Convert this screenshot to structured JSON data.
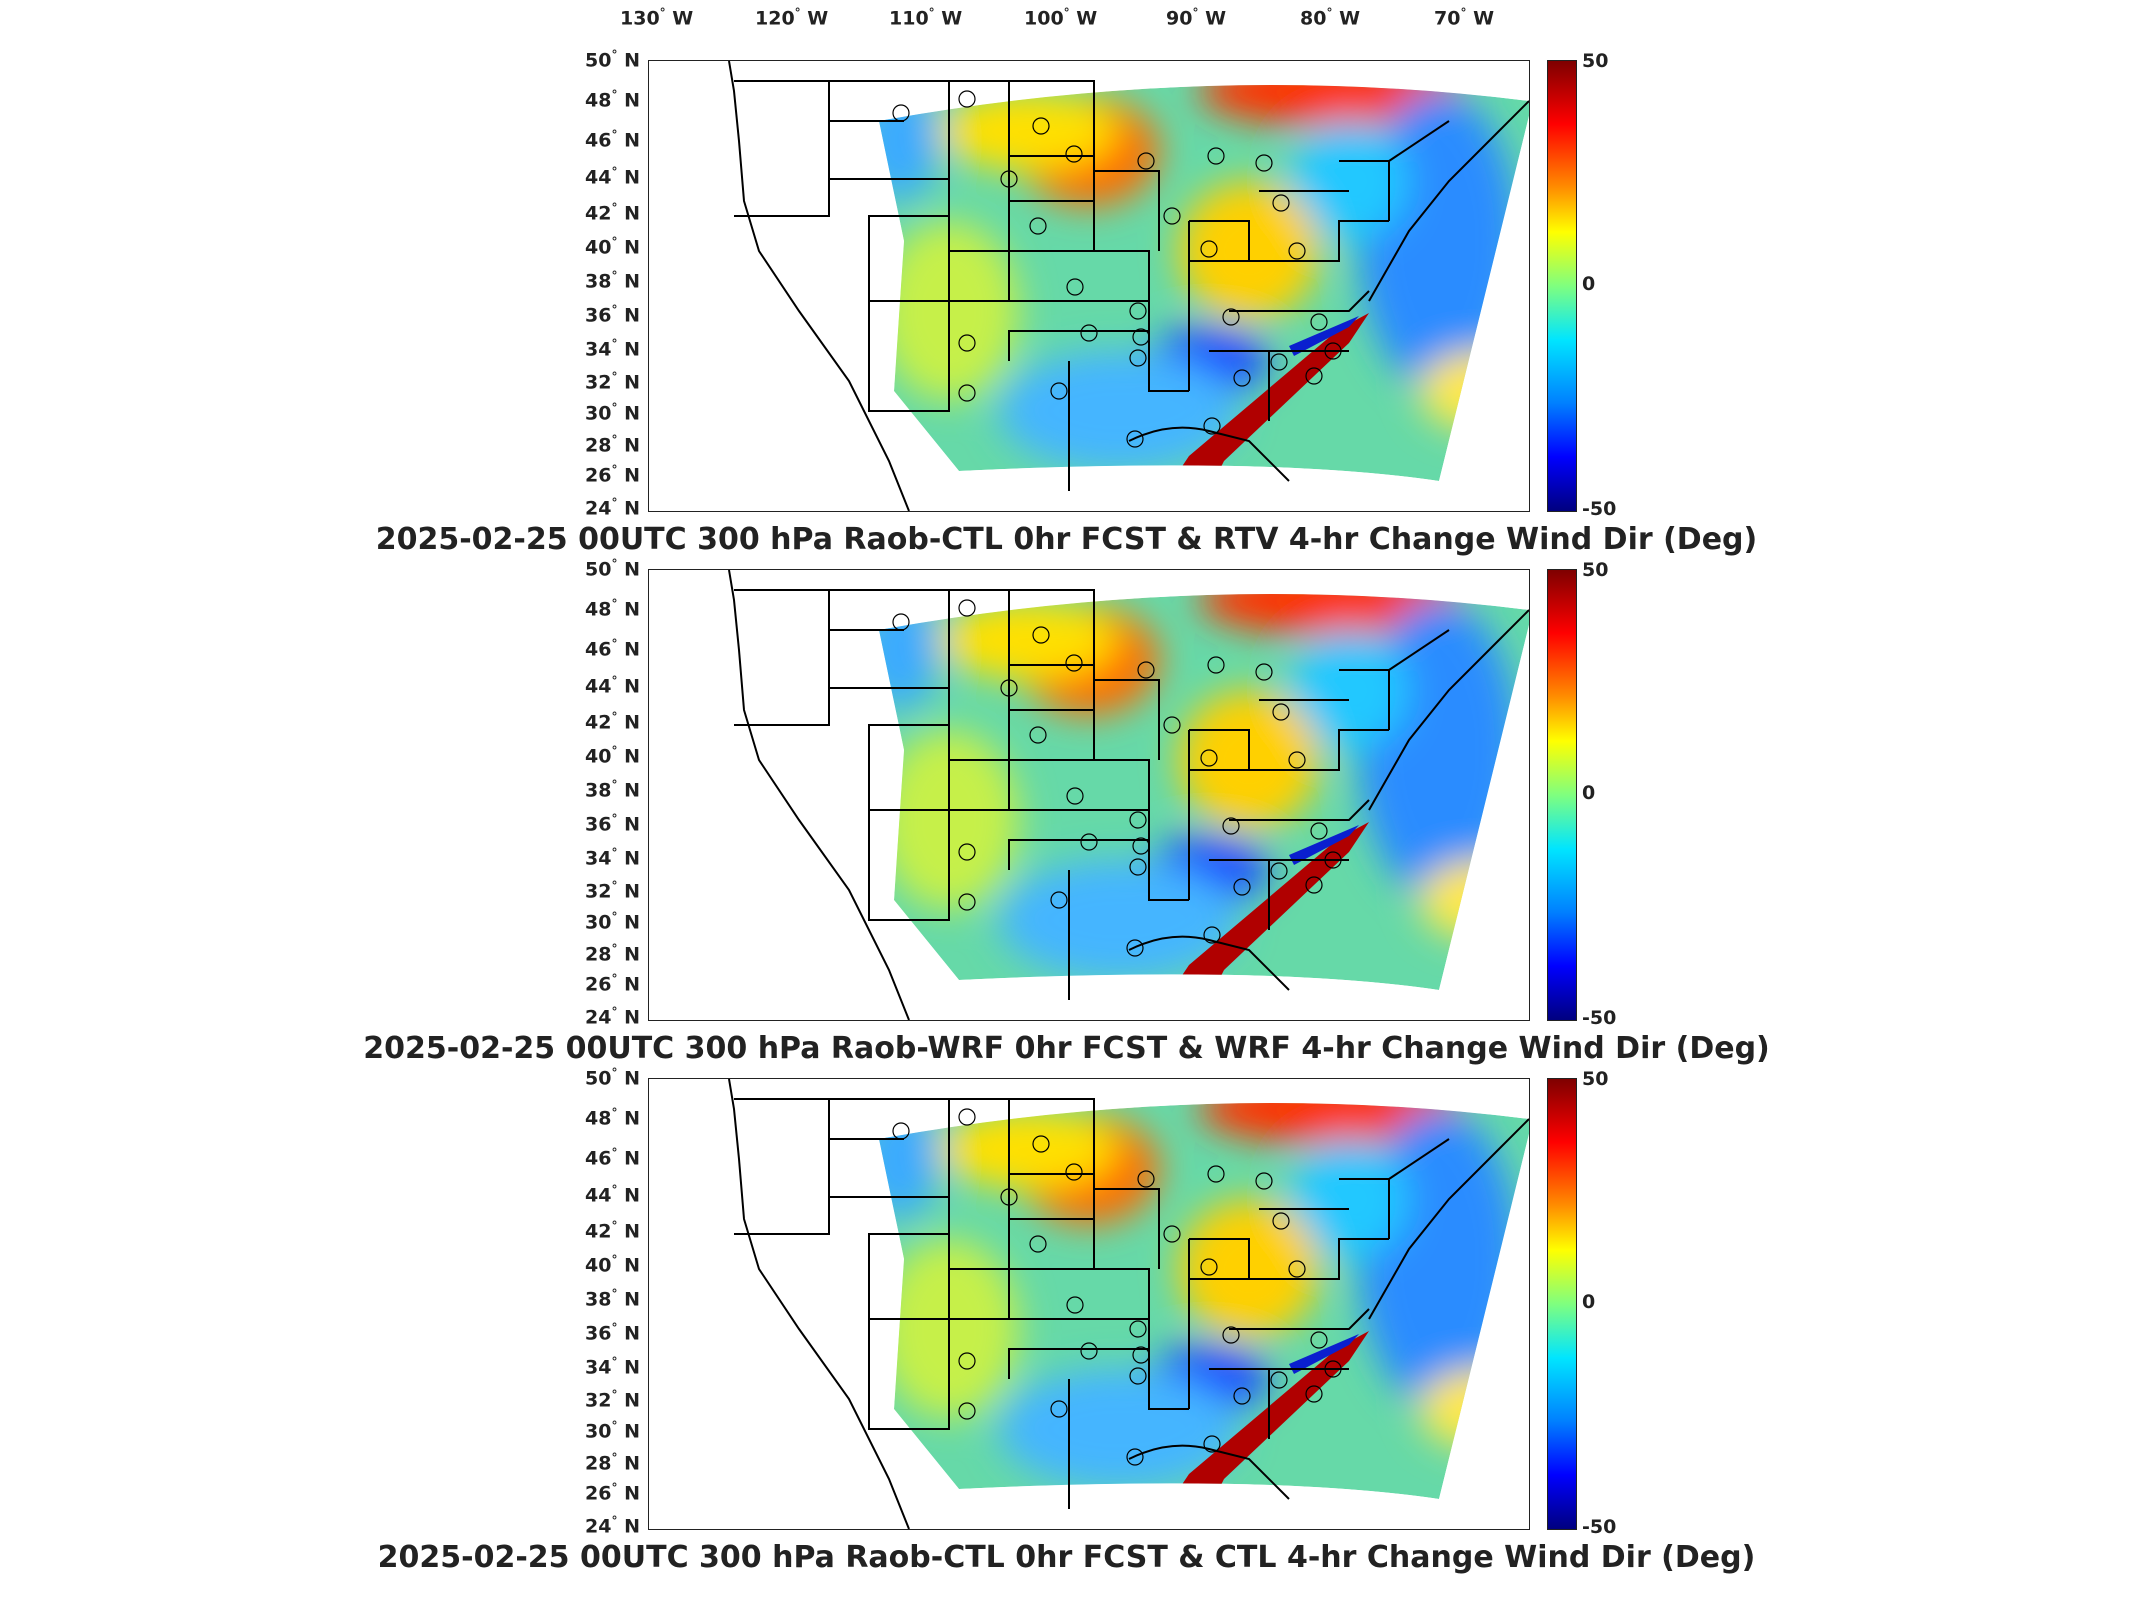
{
  "lon_labels": [
    "130",
    "120",
    "110",
    "100",
    "90",
    "80",
    "70"
  ],
  "lon_suffix": "W",
  "lat_labels": [
    "50",
    "48",
    "46",
    "44",
    "42",
    "40",
    "38",
    "36",
    "34",
    "32",
    "30",
    "28",
    "26",
    "24"
  ],
  "lat_suffix": "N",
  "colorbar": {
    "max": "50",
    "mid": "0",
    "min": "-50"
  },
  "colors": {
    "high": "#8b0000",
    "mid": "#7fff7f",
    "low": "#00008b"
  },
  "panels": [
    {
      "title": "2025-02-25 00UTC 300 hPa Raob-CTL 0hr FCST & RTV 4-hr Change Wind Dir (Deg)"
    },
    {
      "title": "2025-02-25 00UTC 300 hPa Raob-WRF 0hr FCST & WRF 4-hr Change Wind Dir (Deg)"
    },
    {
      "title": "2025-02-25 00UTC 300 hPa Raob-CTL 0hr FCST & CTL 4-hr Change Wind Dir (Deg)"
    }
  ]
}
